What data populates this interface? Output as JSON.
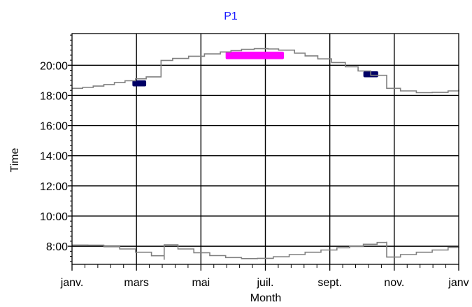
{
  "chart_data": {
    "type": "line",
    "title": "P1",
    "xlabel": "Month",
    "ylabel": "Time",
    "x_ticks": [
      "janv.",
      "mars",
      "mai",
      "juil.",
      "sept.",
      "nov.",
      "janv"
    ],
    "y_ticks": [
      "8:00",
      "10:00",
      "12:00",
      "14:00",
      "16:00",
      "18:00",
      "20:00"
    ],
    "xlim": [
      0,
      365
    ],
    "ylim_hours": [
      6.8,
      22.1
    ],
    "grid": true,
    "colors": {
      "curve": "#808080",
      "grid": "#000000",
      "events_dark": "#000066",
      "events_magenta": "#ff00ff",
      "title": "#1a1aff"
    },
    "series": [
      {
        "role": "sunset",
        "points": [
          [
            0,
            18.47
          ],
          [
            10,
            18.53
          ],
          [
            20,
            18.62
          ],
          [
            30,
            18.72
          ],
          [
            40,
            18.85
          ],
          [
            50,
            18.97
          ],
          [
            60,
            19.1
          ],
          [
            70,
            19.23
          ],
          [
            84,
            19.33
          ],
          [
            84,
            20.32
          ],
          [
            95,
            20.45
          ],
          [
            110,
            20.6
          ],
          [
            125,
            20.75
          ],
          [
            140,
            20.88
          ],
          [
            150,
            20.97
          ],
          [
            160,
            21.05
          ],
          [
            172,
            21.1
          ],
          [
            185,
            21.08
          ],
          [
            195,
            21.0
          ],
          [
            210,
            20.8
          ],
          [
            220,
            20.62
          ],
          [
            232,
            20.42
          ],
          [
            245,
            20.18
          ],
          [
            258,
            19.9
          ],
          [
            270,
            19.62
          ],
          [
            282,
            19.33
          ],
          [
            297,
            19.0
          ],
          [
            297,
            18.47
          ],
          [
            310,
            18.3
          ],
          [
            325,
            18.18
          ],
          [
            340,
            18.2
          ],
          [
            355,
            18.3
          ],
          [
            365,
            18.37
          ]
        ]
      },
      {
        "role": "sunrise",
        "points": [
          [
            0,
            8.08
          ],
          [
            15,
            8.07
          ],
          [
            30,
            7.97
          ],
          [
            45,
            7.82
          ],
          [
            60,
            7.6
          ],
          [
            75,
            7.37
          ],
          [
            87,
            7.1
          ],
          [
            87,
            8.1
          ],
          [
            100,
            7.82
          ],
          [
            115,
            7.57
          ],
          [
            130,
            7.38
          ],
          [
            145,
            7.25
          ],
          [
            160,
            7.18
          ],
          [
            175,
            7.2
          ],
          [
            190,
            7.3
          ],
          [
            205,
            7.45
          ],
          [
            220,
            7.6
          ],
          [
            235,
            7.75
          ],
          [
            250,
            7.9
          ],
          [
            262,
            7.98
          ],
          [
            275,
            8.13
          ],
          [
            288,
            8.25
          ],
          [
            297,
            8.3
          ],
          [
            297,
            7.28
          ],
          [
            310,
            7.45
          ],
          [
            325,
            7.6
          ],
          [
            340,
            7.75
          ],
          [
            355,
            7.92
          ],
          [
            365,
            8.0
          ]
        ]
      }
    ],
    "event_blocks": [
      {
        "color": "dark",
        "x": [
          57,
          70
        ],
        "y": [
          18.6,
          19.0
        ]
      },
      {
        "color": "magenta",
        "x": [
          145,
          200
        ],
        "y": [
          20.4,
          20.9
        ]
      },
      {
        "color": "dark",
        "x": [
          275,
          289
        ],
        "y": [
          19.2,
          19.6
        ]
      }
    ]
  }
}
